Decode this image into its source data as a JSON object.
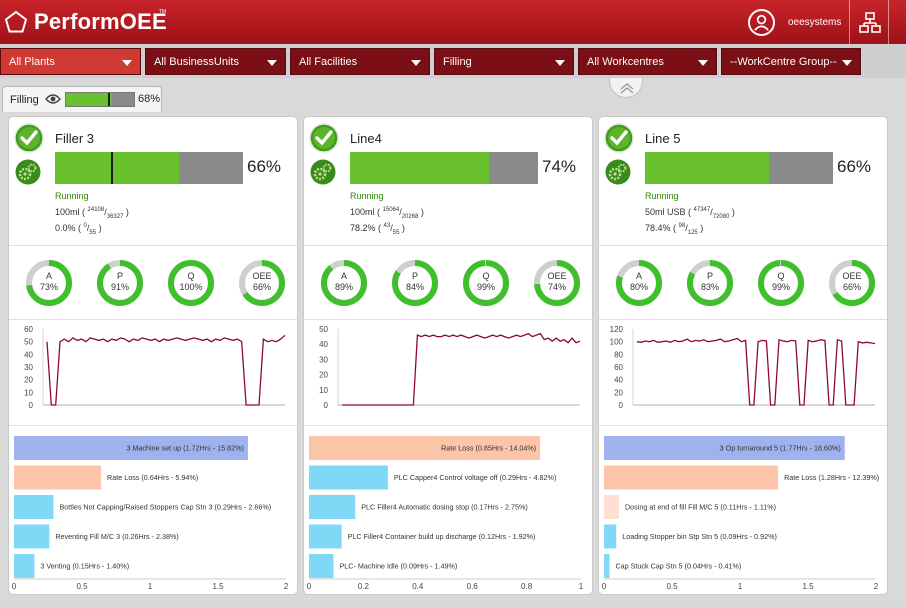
{
  "header": {
    "app_name": "PerformOEE",
    "trademark": "TM",
    "user": "oeesystems",
    "user_icon": "user-circle-icon",
    "hierarchy_icon": "org-chart-icon"
  },
  "filters": [
    {
      "label": "All Plants",
      "active": true
    },
    {
      "label": "All BusinessUnits",
      "active": false
    },
    {
      "label": "All Facilities",
      "active": false
    },
    {
      "label": "Filling",
      "active": false
    },
    {
      "label": "All Workcentres",
      "active": false
    },
    {
      "label": "--WorkCentre Group--",
      "active": false
    }
  ],
  "filling_tab": {
    "label": "Filling",
    "icon": "eye-icon",
    "percent": "68%",
    "value": 0.68
  },
  "colors": {
    "brand": "#b5161d",
    "good": "#68c12d",
    "bar_bg": "#8a8a8a",
    "trend": "#8b0a2c",
    "pareto_top": "#9fb2ee",
    "pareto_rate": "#fcc4a8",
    "pareto_other": "#7fd8f5"
  },
  "cards": [
    {
      "title": "Filler 3",
      "percent": "66%",
      "value": 0.66,
      "marker": 0.3,
      "status": "Running",
      "product": "100ml",
      "count_num": "24108",
      "count_den": "36327",
      "rate": "0.0%",
      "rate_num": "0",
      "rate_den": "55",
      "gauges": [
        {
          "label": "A",
          "value": "73%",
          "v": 0.73
        },
        {
          "label": "P",
          "value": "91%",
          "v": 0.91
        },
        {
          "label": "Q",
          "value": "100%",
          "v": 1.0
        },
        {
          "label": "OEE",
          "value": "66%",
          "v": 0.66
        }
      ],
      "trend": {
        "ymax": 60,
        "yticks": [
          "60",
          "50",
          "40",
          "30",
          "20",
          "10",
          "0"
        ],
        "tick_values": [
          60,
          50,
          40,
          30,
          20,
          10,
          0
        ],
        "values": [
          50,
          0,
          0,
          50,
          52,
          50,
          53,
          51,
          52,
          50,
          53,
          52,
          51,
          52,
          50,
          52,
          51,
          53,
          52,
          50,
          52,
          51,
          53,
          52,
          51,
          52,
          50,
          52,
          51,
          52,
          53,
          52,
          51,
          52,
          53,
          52,
          51,
          52,
          50,
          52,
          51,
          53,
          52,
          51,
          52,
          50,
          0,
          0,
          0,
          0,
          52,
          50,
          51,
          50,
          52,
          55
        ]
      },
      "pareto": {
        "xmax": 2,
        "xticks": [
          "0",
          "0.5",
          "1",
          "1.5",
          "2"
        ],
        "tick_values": [
          0,
          0.5,
          1,
          1.5,
          2
        ],
        "bars": [
          {
            "label": "3 Machine set up (1.72Hrs - 15.82%)",
            "value": 1.72,
            "color": "#9fb2ee"
          },
          {
            "label": "Rate Loss (0.64Hrs - 5.94%)",
            "value": 0.64,
            "color": "#fcc4a8"
          },
          {
            "label": "Bottles Not Capping/Raised Stoppers Cap Stn 3 (0.29Hrs - 2.66%)",
            "value": 0.29,
            "color": "#7fd8f5"
          },
          {
            "label": "Reventing Fill M/C 3 (0.26Hrs - 2.38%)",
            "value": 0.26,
            "color": "#7fd8f5"
          },
          {
            "label": "3 Venting (0.15Hrs - 1.40%)",
            "value": 0.15,
            "color": "#7fd8f5"
          }
        ]
      }
    },
    {
      "title": "Line4",
      "percent": "74%",
      "value": 0.74,
      "marker": null,
      "status": "Running",
      "product": "100ml",
      "count_num": "15064",
      "count_den": "20268",
      "rate": "78.2%",
      "rate_num": "43",
      "rate_den": "55",
      "gauges": [
        {
          "label": "A",
          "value": "89%",
          "v": 0.89
        },
        {
          "label": "P",
          "value": "84%",
          "v": 0.84
        },
        {
          "label": "Q",
          "value": "99%",
          "v": 0.99
        },
        {
          "label": "OEE",
          "value": "74%",
          "v": 0.74
        }
      ],
      "trend": {
        "ymax": 50,
        "yticks": [
          "50",
          "40",
          "30",
          "20",
          "10",
          "0"
        ],
        "tick_values": [
          50,
          40,
          30,
          20,
          10,
          0
        ],
        "values": [
          0,
          0,
          0,
          0,
          0,
          0,
          0,
          0,
          0,
          0,
          0,
          0,
          0,
          0,
          0,
          0,
          0,
          0,
          0,
          46,
          45,
          46,
          45,
          46,
          45,
          45,
          46,
          45,
          46,
          45,
          46,
          45,
          44,
          45,
          46,
          45,
          44,
          45,
          46,
          45,
          46,
          45,
          44,
          45,
          46,
          45,
          46,
          47,
          45,
          46,
          47,
          43,
          44,
          42,
          44,
          42,
          43,
          41,
          44,
          41,
          42
        ]
      },
      "pareto": {
        "xmax": 1,
        "xticks": [
          "0",
          "0.2",
          "0.4",
          "0.6",
          "0.8",
          "1"
        ],
        "tick_values": [
          0,
          0.2,
          0.4,
          0.6,
          0.8,
          1
        ],
        "bars": [
          {
            "label": "Rate Loss (0.85Hrs - 14.04%)",
            "value": 0.85,
            "color": "#fcc4a8"
          },
          {
            "label": "PLC Capper4 Control voltage off (0.29Hrs - 4.82%)",
            "value": 0.29,
            "color": "#7fd8f5"
          },
          {
            "label": "PLC Filler4 Automatic dosing stop (0.17Hrs - 2.75%)",
            "value": 0.17,
            "color": "#7fd8f5"
          },
          {
            "label": "PLC Filler4 Container build up discharge (0.12Hrs - 1.92%)",
            "value": 0.12,
            "color": "#7fd8f5"
          },
          {
            "label": "PLC- Machine Idle (0.09Hrs - 1.49%)",
            "value": 0.09,
            "color": "#7fd8f5"
          }
        ]
      }
    },
    {
      "title": "Line 5",
      "percent": "66%",
      "value": 0.66,
      "marker": null,
      "status": "Running",
      "product": "50ml USB",
      "count_num": "47347",
      "count_den": "72080",
      "rate": "78.4%",
      "rate_num": "98",
      "rate_den": "125",
      "gauges": [
        {
          "label": "A",
          "value": "80%",
          "v": 0.8
        },
        {
          "label": "P",
          "value": "83%",
          "v": 0.83
        },
        {
          "label": "Q",
          "value": "99%",
          "v": 0.99
        },
        {
          "label": "OEE",
          "value": "66%",
          "v": 0.66
        }
      ],
      "trend": {
        "ymax": 120,
        "yticks": [
          "120",
          "100",
          "80",
          "60",
          "40",
          "20",
          "0"
        ],
        "tick_values": [
          120,
          100,
          80,
          60,
          40,
          20,
          0
        ],
        "values": [
          100,
          99,
          101,
          100,
          102,
          99,
          100,
          101,
          99,
          102,
          100,
          101,
          104,
          100,
          102,
          101,
          103,
          100,
          101,
          102,
          104,
          100,
          101,
          103,
          105,
          100,
          102,
          0,
          0,
          100,
          102,
          101,
          0,
          0,
          103,
          101,
          100,
          102,
          101,
          0,
          0,
          102,
          100,
          101,
          103,
          102,
          0,
          0,
          103,
          101,
          0,
          0,
          0,
          100,
          98,
          99,
          98,
          97
        ]
      },
      "pareto": {
        "xmax": 2,
        "xticks": [
          "0",
          "0.5",
          "1",
          "1.5",
          "2"
        ],
        "tick_values": [
          0,
          0.5,
          1,
          1.5,
          2
        ],
        "bars": [
          {
            "label": "3 Op turnaround 5 (1.77Hrs - 18.60%)",
            "value": 1.77,
            "color": "#9fb2ee"
          },
          {
            "label": "Rate Loss (1.28Hrs - 12.39%)",
            "value": 1.28,
            "color": "#fcc4a8"
          },
          {
            "label": "Dosing at end of fill Fill M/C 5 (0.11Hrs - 1.11%)",
            "value": 0.11,
            "color": "#fde0d2"
          },
          {
            "label": "Loading Stopper bin Stp Stn 5 (0.09Hrs - 0.92%)",
            "value": 0.09,
            "color": "#7fd8f5"
          },
          {
            "label": "Cap Stuck Cap Stn 5 (0.04Hrs - 0.41%)",
            "value": 0.04,
            "color": "#7fd8f5"
          }
        ]
      }
    }
  ]
}
